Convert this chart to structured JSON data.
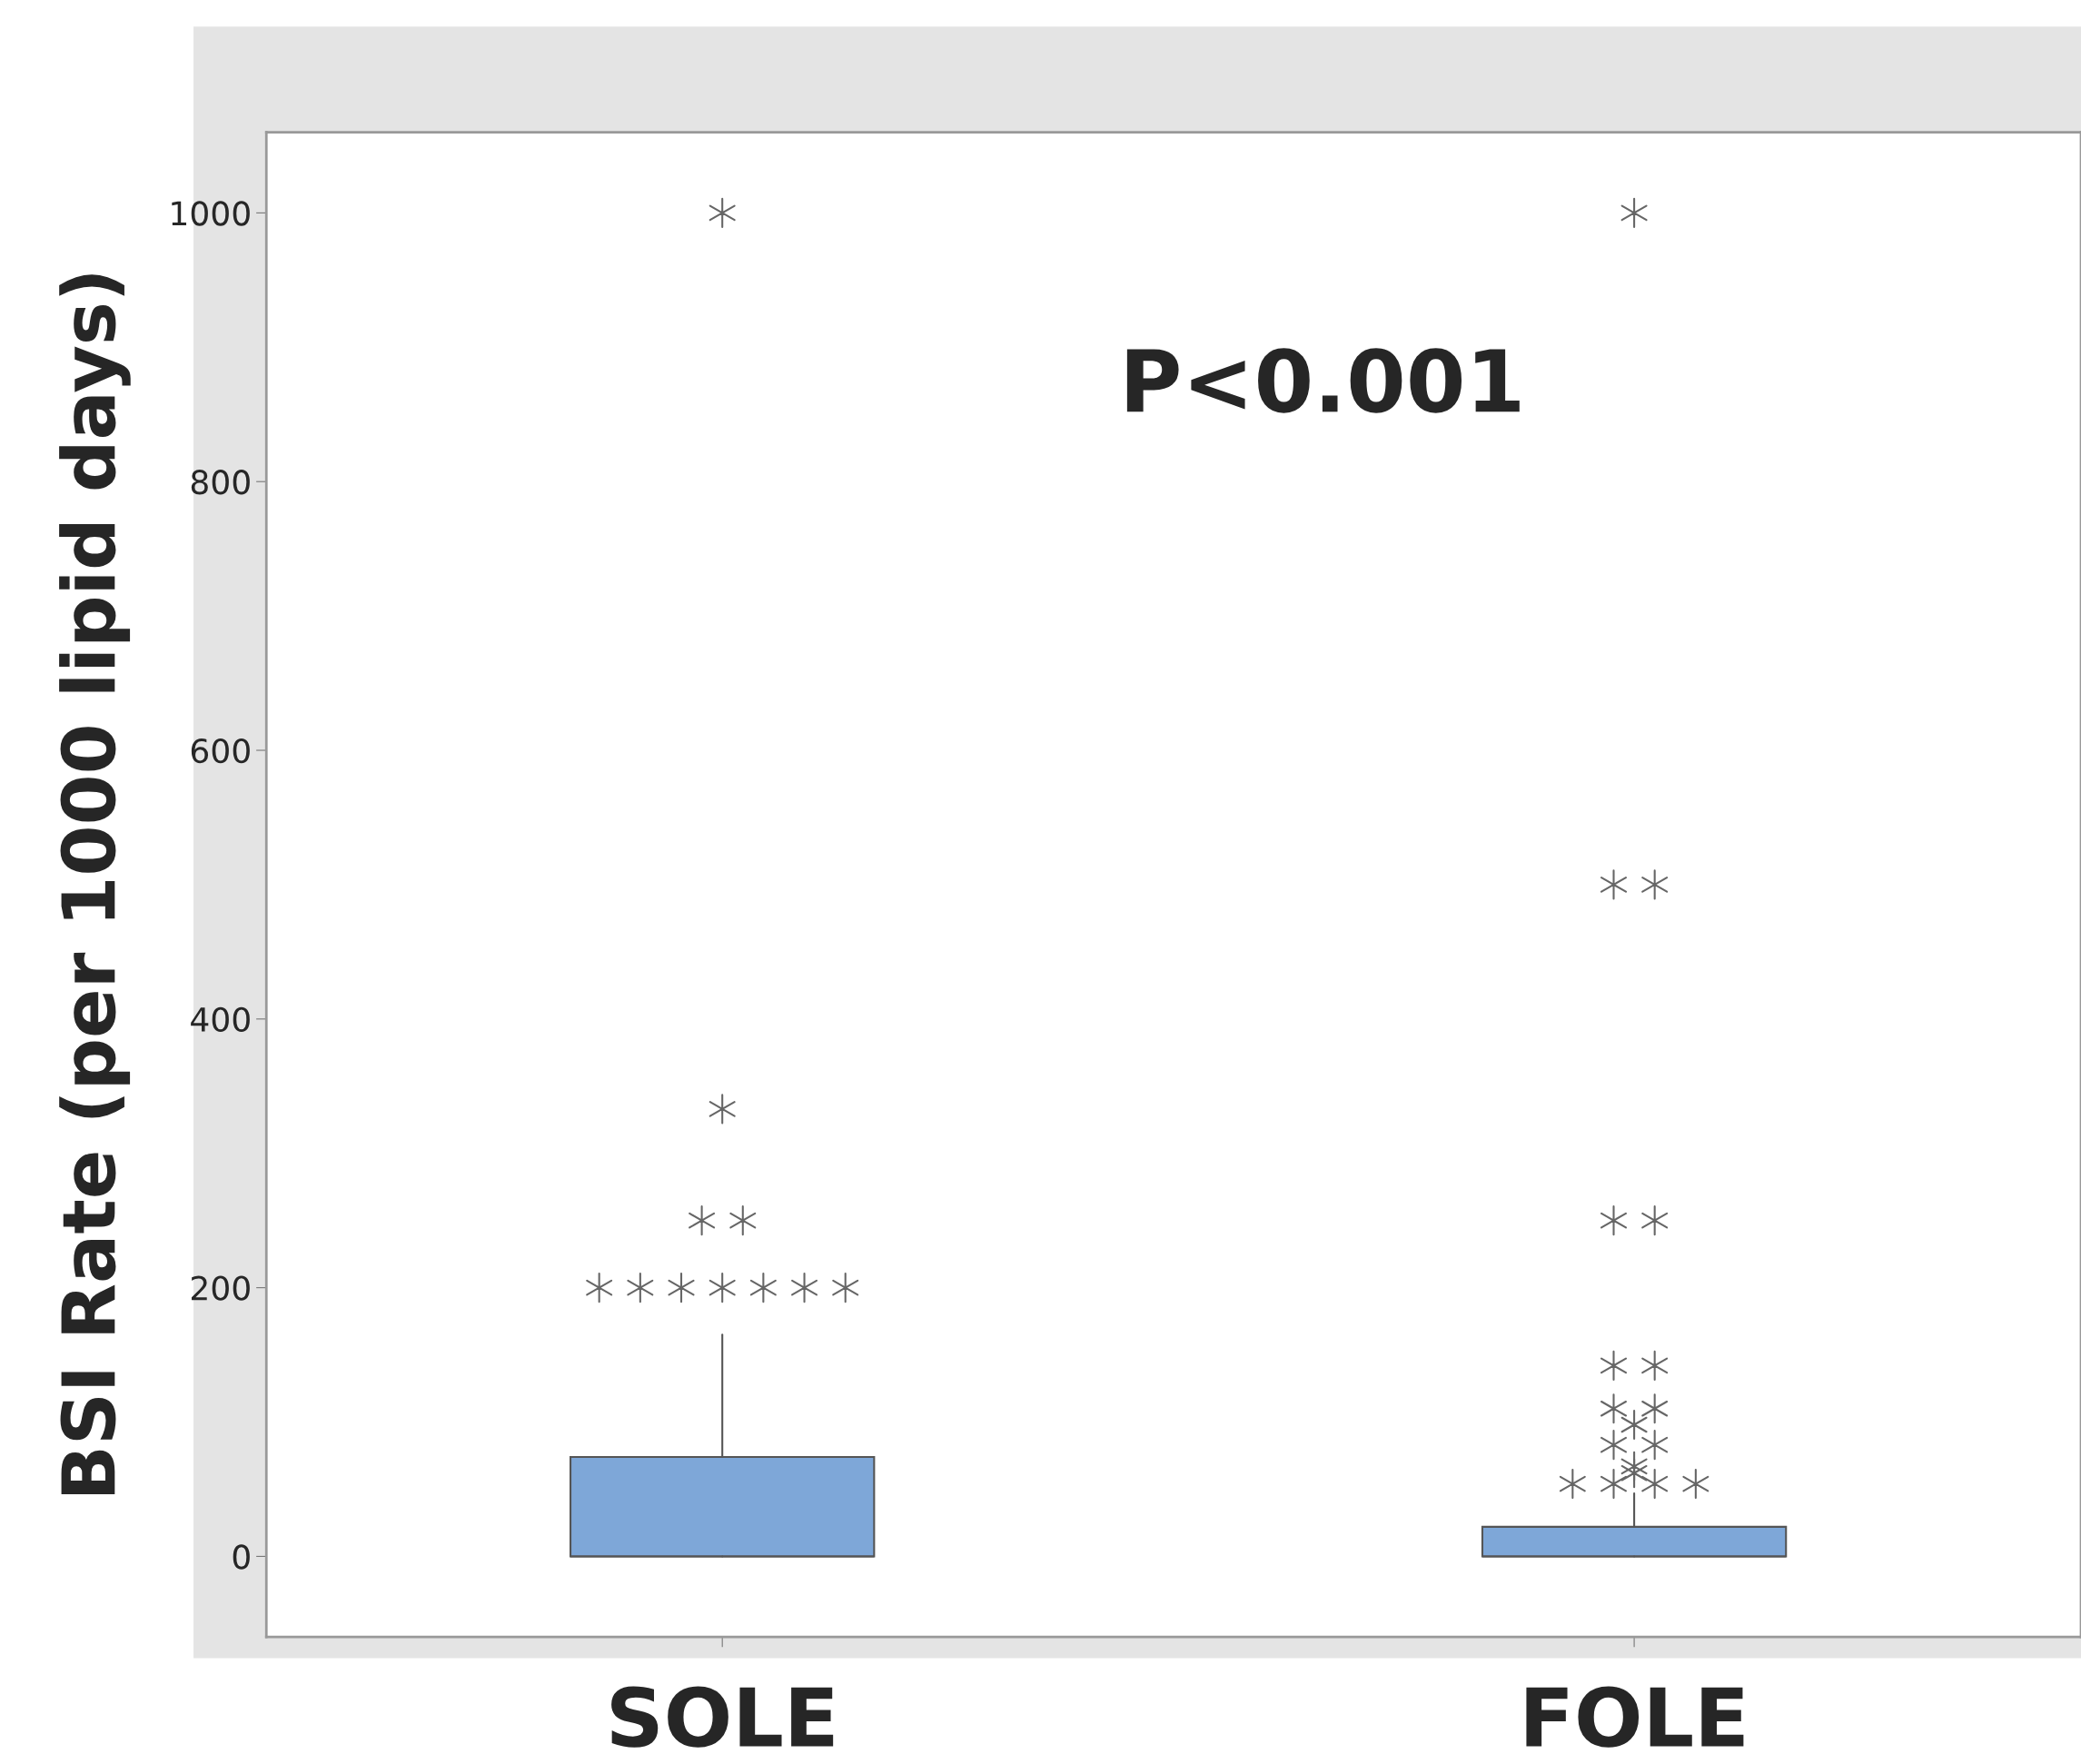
{
  "chart_data": {
    "type": "box",
    "ylabel": "BSI Rate (per 1000 lipid days)",
    "categories": [
      "SOLE",
      "FOLE"
    ],
    "series": [
      {
        "color": "#7ea7d8",
        "boxes": [
          {
            "low": 0,
            "q1": 0,
            "median": 0,
            "q3": 74,
            "high": 165,
            "outliers": [
              200,
              200,
              200,
              200,
              200,
              200,
              200,
              250,
              250,
              333,
              1000
            ]
          },
          {
            "low": 0,
            "q1": 0,
            "median": 0,
            "q3": 22,
            "high": 47,
            "outliers": [
              54,
              54,
              54,
              54,
              62,
              67,
              83,
              83,
              98,
              110,
              110,
              142,
              142,
              250,
              250,
              500,
              500,
              1000
            ]
          }
        ]
      }
    ],
    "ylim": [
      -60,
      1060
    ],
    "yticks": [
      0,
      200,
      400,
      600,
      800,
      1000
    ],
    "marker": "cross",
    "grid": false,
    "legend": false,
    "annotations": [
      "P<0.001"
    ]
  }
}
